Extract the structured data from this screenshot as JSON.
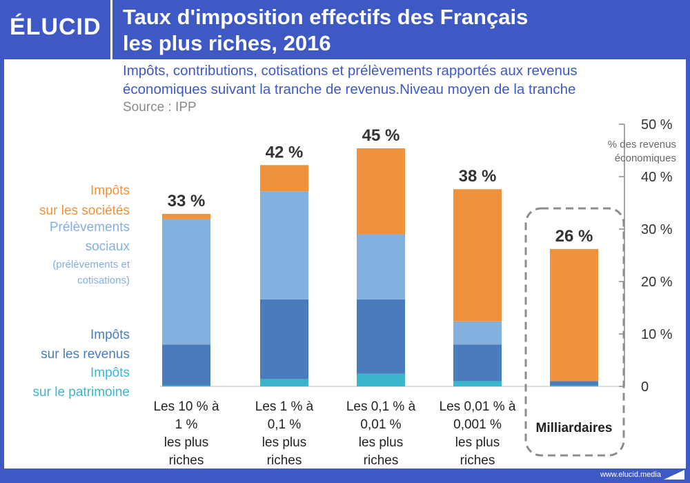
{
  "brand": {
    "logo": "ÉLUCID",
    "url": "www.elucid.media"
  },
  "title_line1": "Taux d'imposition effectifs des Français",
  "title_line2": "les plus riches, 2016",
  "subtitle_line1": "Impôts, contributions, cotisations et prélèvements rapportés aux revenus",
  "subtitle_line2": "économiques suivant la tranche de revenus.Niveau moyen de la tranche",
  "source": "Source : IPP",
  "colors": {
    "frame": "#3f59c4",
    "orange": "#f0923c",
    "light_blue": "#84b0e0",
    "mid_blue": "#4a7cbd",
    "teal": "#3bb6cc"
  },
  "legend": {
    "societes_line1": "Impôts",
    "societes_line2": "sur les sociétés",
    "sociaux_line1": "Prélèvements",
    "sociaux_line2": "sociaux",
    "sociaux_line3": "(prélèvements et",
    "sociaux_line4": "cotisations)",
    "revenus_line1": "Impôts",
    "revenus_line2": "sur les revenus",
    "patrimoine_line1": "Impôts",
    "patrimoine_line2": "sur le patrimoine"
  },
  "chart_data": {
    "type": "bar",
    "stacked": true,
    "ylim": [
      0,
      50
    ],
    "yticks": [
      "0",
      "10 %",
      "20 %",
      "30 %",
      "40 %",
      "50 %"
    ],
    "yunit_line1": "% des revenus",
    "yunit_line2": "économiques",
    "grid": false,
    "categories": [
      [
        "Les 10 % à",
        "1 %",
        "les plus",
        "riches"
      ],
      [
        "Les 1 % à",
        "0,1 %",
        "les plus",
        "riches"
      ],
      [
        "Les 0,1 % à",
        "0,01 %",
        "les plus",
        "riches"
      ],
      [
        "Les 0,01 % à",
        "0,001 %",
        "les plus",
        "riches"
      ],
      [
        "Milliardaires"
      ]
    ],
    "totals": [
      "33 %",
      "42 %",
      "45 %",
      "38 %",
      "26 %"
    ],
    "highlighted_category": 4,
    "series": [
      {
        "name": "Impôts sur le patrimoine",
        "color": "#3bb6cc",
        "values": [
          0.2,
          1.4,
          2.4,
          1.0,
          0.2
        ]
      },
      {
        "name": "Impôts sur les revenus",
        "color": "#4a7cbd",
        "values": [
          7.8,
          15.2,
          14.2,
          7.0,
          0.8
        ]
      },
      {
        "name": "Prélèvements sociaux",
        "color": "#84b0e0",
        "values": [
          23.9,
          20.6,
          12.4,
          4.4,
          0.0
        ]
      },
      {
        "name": "Impôts sur les sociétés",
        "color": "#f0923c",
        "values": [
          1.0,
          5.0,
          16.4,
          25.2,
          25.2
        ]
      }
    ]
  }
}
